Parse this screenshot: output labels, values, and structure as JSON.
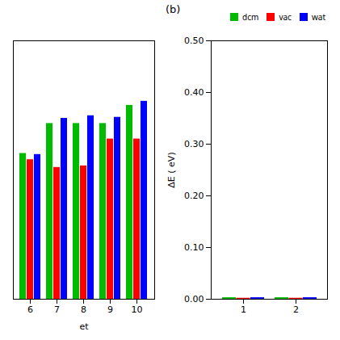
{
  "chart_data": [
    {
      "type": "bar",
      "xlabel": "et",
      "categories": [
        "6",
        "7",
        "8",
        "9",
        "10"
      ],
      "series": [
        {
          "name": "dcm",
          "color": "#00bb00",
          "values": [
            0.282,
            0.34,
            0.34,
            0.34,
            0.375
          ]
        },
        {
          "name": "vac",
          "color": "#ff0000",
          "values": [
            0.27,
            0.255,
            0.258,
            0.31,
            0.31
          ]
        },
        {
          "name": "wat",
          "color": "#0000ff",
          "values": [
            0.28,
            0.35,
            0.355,
            0.352,
            0.383
          ]
        }
      ],
      "ylim": [
        0.0,
        0.5
      ],
      "yticks": [],
      "tick_labels": "x"
    },
    {
      "type": "bar",
      "title": "(b)",
      "ylabel": "ΔE ( eV)",
      "categories": [
        "1",
        "2"
      ],
      "series": [
        {
          "name": "dcm",
          "color": "#00bb00",
          "values": [
            0.003,
            0.003
          ]
        },
        {
          "name": "vac",
          "color": "#ff0000",
          "values": [
            0.002,
            0.002
          ]
        },
        {
          "name": "wat",
          "color": "#0000ff",
          "values": [
            0.003,
            0.003
          ]
        }
      ],
      "ylim": [
        0.0,
        0.5
      ],
      "yticks": [
        {
          "value": 0.0,
          "label": "0.00"
        },
        {
          "value": 0.1,
          "label": "0.10"
        },
        {
          "value": 0.2,
          "label": "0.20"
        },
        {
          "value": 0.3,
          "label": "0.30"
        },
        {
          "value": 0.4,
          "label": "0.40"
        },
        {
          "value": 0.5,
          "label": "0.50"
        }
      ],
      "legend": "upper right"
    }
  ]
}
